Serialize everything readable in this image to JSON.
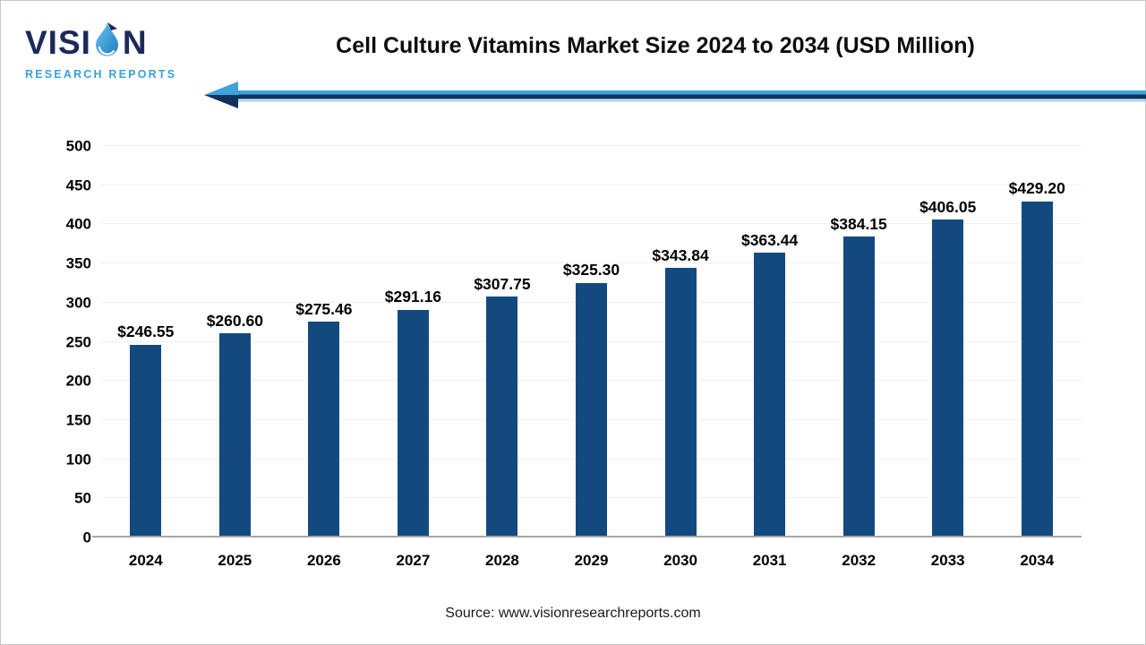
{
  "page": {
    "background": "#FFFFFF",
    "border_color": "#C8C8C8"
  },
  "logo": {
    "brand_prefix": "VISI",
    "brand_suffix": "N",
    "subtitle": "RESEARCH REPORTS",
    "navy": "#1B2A5A",
    "light_blue": "#38A1D8",
    "droplet_icon": "water-drop"
  },
  "header": {
    "title": "Cell Culture Vitamins Market Size 2024 to 2034 (USD Million)",
    "arrow": {
      "direction": "left",
      "light_blue": "#3DA3DC",
      "dark_navy": "#12315E",
      "pale_blue": "#9BD2EE"
    }
  },
  "chart_data": {
    "type": "bar",
    "title": "Cell Culture Vitamins Market Size 2024 to 2034 (USD Million)",
    "categories": [
      "2024",
      "2025",
      "2026",
      "2027",
      "2028",
      "2029",
      "2030",
      "2031",
      "2032",
      "2033",
      "2034"
    ],
    "values": [
      246.55,
      260.6,
      275.46,
      291.16,
      307.75,
      325.3,
      343.84,
      363.44,
      384.15,
      406.05,
      429.2
    ],
    "labels": [
      "$246.55",
      "$260.60",
      "$275.46",
      "$291.16",
      "$307.75",
      "$325.30",
      "$343.84",
      "$363.44",
      "$384.15",
      "$406.05",
      "$429.20"
    ],
    "xlabel": "",
    "ylabel": "",
    "ylim": [
      0,
      500
    ],
    "yticks": [
      0,
      50,
      100,
      150,
      200,
      250,
      300,
      350,
      400,
      450,
      500
    ],
    "grid": true,
    "legend": "none",
    "bar_color": "#124A80",
    "gridline_color": "#F0F0F0",
    "axis_line_color": "#A6A6A6",
    "tick_label_color": "#000000",
    "value_label_color": "#000000"
  },
  "footer": {
    "source": "Source: www.visionresearchreports.com"
  }
}
